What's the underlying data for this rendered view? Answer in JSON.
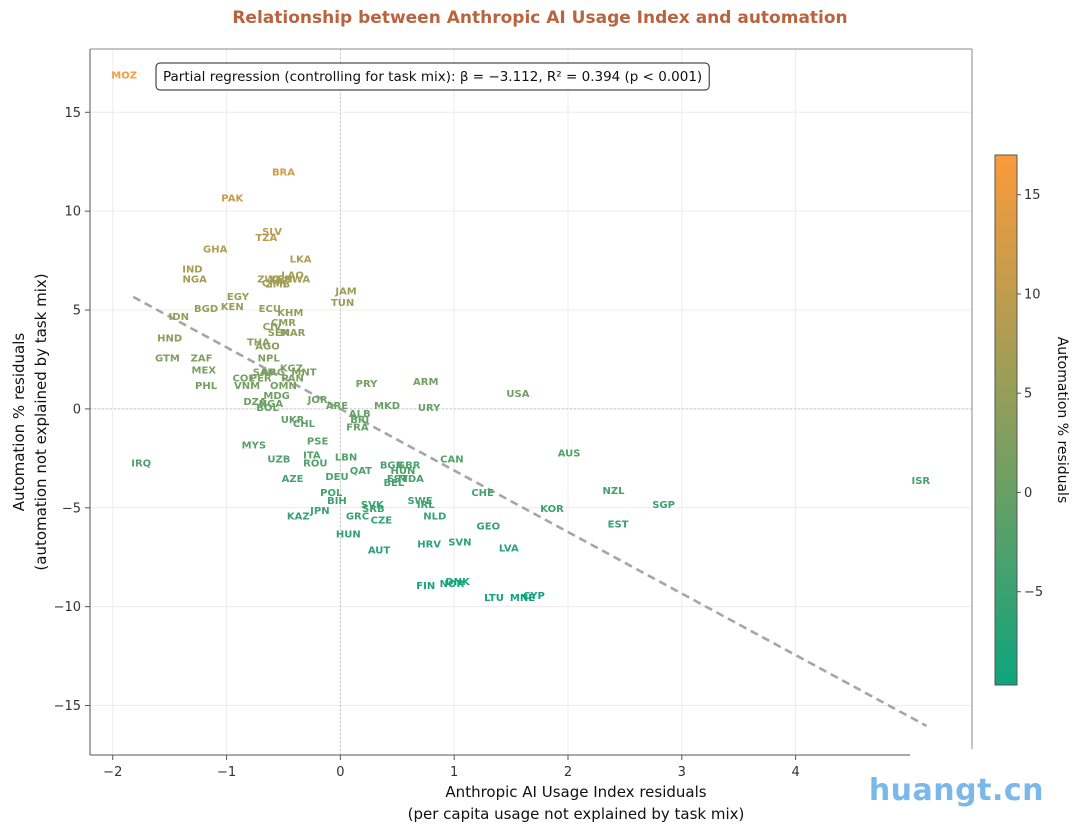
{
  "chart_data": {
    "type": "scatter",
    "title": "Relationship between Anthropic AI Usage Index and automation",
    "xlabel": [
      "Anthropic AI Usage Index residuals",
      "(per capita usage not explained by task mix)"
    ],
    "ylabel": [
      "Automation % residuals",
      "(automation not explained by task mix)"
    ],
    "colorbar_label": "Automation % residuals",
    "colorbar_ticks": [
      -5,
      0,
      5,
      10,
      15
    ],
    "colorbar_range": [
      -9.7,
      17
    ],
    "colorscale": [
      "#0ea47d",
      "#8a9e5c",
      "#fb9a3c"
    ],
    "xlim": [
      -2.2,
      5.55
    ],
    "ylim": [
      -17.5,
      18.2
    ],
    "xticks": [
      -2,
      -1,
      0,
      1,
      2,
      3,
      4
    ],
    "yticks": [
      -15,
      -10,
      -5,
      0,
      5,
      10,
      15
    ],
    "grid": true,
    "reference_lines": {
      "x": 0,
      "y": 0
    },
    "annotation": "Partial regression (controlling for task mix): β = −3.112, R² = 0.394 (p < 0.001)",
    "regression": {
      "slope": -3.112,
      "intercept": 0,
      "x_range": [
        -1.82,
        5.15
      ]
    },
    "points": [
      {
        "label": "MOZ",
        "x": -1.9,
        "y": 16.9
      },
      {
        "label": "BRA",
        "x": -0.5,
        "y": 12.0
      },
      {
        "label": "PAK",
        "x": -0.95,
        "y": 10.7
      },
      {
        "label": "SLV",
        "x": -0.6,
        "y": 9.0
      },
      {
        "label": "TZA",
        "x": -0.65,
        "y": 8.7
      },
      {
        "label": "GHA",
        "x": -1.1,
        "y": 8.1
      },
      {
        "label": "LKA",
        "x": -0.35,
        "y": 7.6
      },
      {
        "label": "IND",
        "x": -1.3,
        "y": 7.1
      },
      {
        "label": "LAO",
        "x": -0.42,
        "y": 6.8
      },
      {
        "label": "NGA",
        "x": -1.28,
        "y": 6.6
      },
      {
        "label": "ZWE",
        "x": -0.62,
        "y": 6.6
      },
      {
        "label": "KEN",
        "x": -0.52,
        "y": 6.6
      },
      {
        "label": "RWA",
        "x": -0.38,
        "y": 6.6
      },
      {
        "label": "CMR",
        "x": -0.58,
        "y": 6.4
      },
      {
        "label": "ZMB",
        "x": -0.55,
        "y": 6.35
      },
      {
        "label": "JAM",
        "x": 0.05,
        "y": 6.0
      },
      {
        "label": "EGY",
        "x": -0.9,
        "y": 5.7
      },
      {
        "label": "TUN",
        "x": 0.02,
        "y": 5.4
      },
      {
        "label": "BGD",
        "x": -1.18,
        "y": 5.1
      },
      {
        "label": "KEN",
        "x": -0.95,
        "y": 5.2
      },
      {
        "label": "ECU",
        "x": -0.62,
        "y": 5.1
      },
      {
        "label": "KHM",
        "x": -0.44,
        "y": 4.9
      },
      {
        "label": "IDN",
        "x": -1.42,
        "y": 4.7
      },
      {
        "label": "CMR",
        "x": -0.5,
        "y": 4.4
      },
      {
        "label": "CIV",
        "x": -0.6,
        "y": 4.2
      },
      {
        "label": "SEN",
        "x": -0.54,
        "y": 3.9
      },
      {
        "label": "MAR",
        "x": -0.42,
        "y": 3.9
      },
      {
        "label": "HND",
        "x": -1.5,
        "y": 3.6
      },
      {
        "label": "THA",
        "x": -0.72,
        "y": 3.4
      },
      {
        "label": "AGO",
        "x": -0.64,
        "y": 3.2
      },
      {
        "label": "GTM",
        "x": -1.52,
        "y": 2.6
      },
      {
        "label": "ZAF",
        "x": -1.22,
        "y": 2.6
      },
      {
        "label": "NPL",
        "x": -0.63,
        "y": 2.6
      },
      {
        "label": "KGZ",
        "x": -0.43,
        "y": 2.1
      },
      {
        "label": "MEX",
        "x": -1.2,
        "y": 2.0
      },
      {
        "label": "SAU",
        "x": -0.67,
        "y": 1.9
      },
      {
        "label": "ARG",
        "x": -0.59,
        "y": 1.9
      },
      {
        "label": "MNT",
        "x": -0.32,
        "y": 1.9
      },
      {
        "label": "COL",
        "x": -0.85,
        "y": 1.6
      },
      {
        "label": "PER",
        "x": -0.7,
        "y": 1.6
      },
      {
        "label": "PAN",
        "x": -0.42,
        "y": 1.6
      },
      {
        "label": "PHL",
        "x": -1.18,
        "y": 1.2
      },
      {
        "label": "VNM",
        "x": -0.82,
        "y": 1.2
      },
      {
        "label": "OMN",
        "x": -0.5,
        "y": 1.2
      },
      {
        "label": "PRY",
        "x": 0.23,
        "y": 1.3
      },
      {
        "label": "ARM",
        "x": 0.75,
        "y": 1.4
      },
      {
        "label": "MDG",
        "x": -0.56,
        "y": 0.7
      },
      {
        "label": "USA",
        "x": 1.56,
        "y": 0.8
      },
      {
        "label": "DZA",
        "x": -0.75,
        "y": 0.4
      },
      {
        "label": "NGA",
        "x": -0.61,
        "y": 0.3
      },
      {
        "label": "JOR",
        "x": -0.2,
        "y": 0.5
      },
      {
        "label": "BOL",
        "x": -0.64,
        "y": 0.1
      },
      {
        "label": "ARE",
        "x": -0.03,
        "y": 0.2
      },
      {
        "label": "MKD",
        "x": 0.41,
        "y": 0.2
      },
      {
        "label": "URY",
        "x": 0.78,
        "y": 0.1
      },
      {
        "label": "ALB",
        "x": 0.17,
        "y": -0.2
      },
      {
        "label": "UKR",
        "x": -0.42,
        "y": -0.5
      },
      {
        "label": "BRI",
        "x": 0.17,
        "y": -0.5
      },
      {
        "label": "CHL",
        "x": -0.32,
        "y": -0.7
      },
      {
        "label": "FRA",
        "x": 0.15,
        "y": -0.9
      },
      {
        "label": "PSE",
        "x": -0.2,
        "y": -1.6
      },
      {
        "label": "MYS",
        "x": -0.76,
        "y": -1.8
      },
      {
        "label": "ITA",
        "x": -0.25,
        "y": -2.3
      },
      {
        "label": "LBN",
        "x": 0.05,
        "y": -2.4
      },
      {
        "label": "CAN",
        "x": 0.98,
        "y": -2.5
      },
      {
        "label": "AUS",
        "x": 2.01,
        "y": -2.2
      },
      {
        "label": "UZB",
        "x": -0.54,
        "y": -2.5
      },
      {
        "label": "ROU",
        "x": -0.22,
        "y": -2.7
      },
      {
        "label": "IRQ",
        "x": -1.75,
        "y": -2.7
      },
      {
        "label": "BGR",
        "x": 0.45,
        "y": -2.8
      },
      {
        "label": "GBR",
        "x": 0.6,
        "y": -2.8
      },
      {
        "label": "QAT",
        "x": 0.18,
        "y": -3.1
      },
      {
        "label": "HUN",
        "x": 0.55,
        "y": -3.1
      },
      {
        "label": "DEU",
        "x": -0.03,
        "y": -3.4
      },
      {
        "label": "MDA",
        "x": 0.62,
        "y": -3.5
      },
      {
        "label": "AZE",
        "x": -0.42,
        "y": -3.5
      },
      {
        "label": "EST",
        "x": 0.5,
        "y": -3.5
      },
      {
        "label": "BEL",
        "x": 0.47,
        "y": -3.7
      },
      {
        "label": "ISR",
        "x": 5.1,
        "y": -3.6
      },
      {
        "label": "NZL",
        "x": 2.4,
        "y": -4.1
      },
      {
        "label": "CHE",
        "x": 1.25,
        "y": -4.2
      },
      {
        "label": "POL",
        "x": -0.08,
        "y": -4.2
      },
      {
        "label": "BIH",
        "x": -0.03,
        "y": -4.6
      },
      {
        "label": "SWE",
        "x": 0.7,
        "y": -4.6
      },
      {
        "label": "SGP",
        "x": 2.84,
        "y": -4.8
      },
      {
        "label": "IRL",
        "x": 0.75,
        "y": -4.8
      },
      {
        "label": "SVK",
        "x": 0.28,
        "y": -4.8
      },
      {
        "label": "SRB",
        "x": 0.29,
        "y": -5.0
      },
      {
        "label": "KOR",
        "x": 1.86,
        "y": -5.0
      },
      {
        "label": "JPN",
        "x": -0.18,
        "y": -5.1
      },
      {
        "label": "KAZ",
        "x": -0.37,
        "y": -5.4
      },
      {
        "label": "GRC",
        "x": 0.15,
        "y": -5.4
      },
      {
        "label": "NLD",
        "x": 0.83,
        "y": -5.4
      },
      {
        "label": "CZE",
        "x": 0.36,
        "y": -5.6
      },
      {
        "label": "EST",
        "x": 2.44,
        "y": -5.8
      },
      {
        "label": "GEO",
        "x": 1.3,
        "y": -5.9
      },
      {
        "label": "HUN",
        "x": 0.07,
        "y": -6.3
      },
      {
        "label": "SVN",
        "x": 1.05,
        "y": -6.7
      },
      {
        "label": "HRV",
        "x": 0.78,
        "y": -6.8
      },
      {
        "label": "LVA",
        "x": 1.48,
        "y": -7.0
      },
      {
        "label": "AUT",
        "x": 0.34,
        "y": -7.1
      },
      {
        "label": "DNK",
        "x": 1.03,
        "y": -8.7
      },
      {
        "label": "NOR",
        "x": 0.98,
        "y": -8.8
      },
      {
        "label": "FIN",
        "x": 0.75,
        "y": -8.9
      },
      {
        "label": "CYP",
        "x": 1.7,
        "y": -9.4
      },
      {
        "label": "LTU",
        "x": 1.35,
        "y": -9.5
      },
      {
        "label": "MNE",
        "x": 1.6,
        "y": -9.5
      }
    ]
  }
}
